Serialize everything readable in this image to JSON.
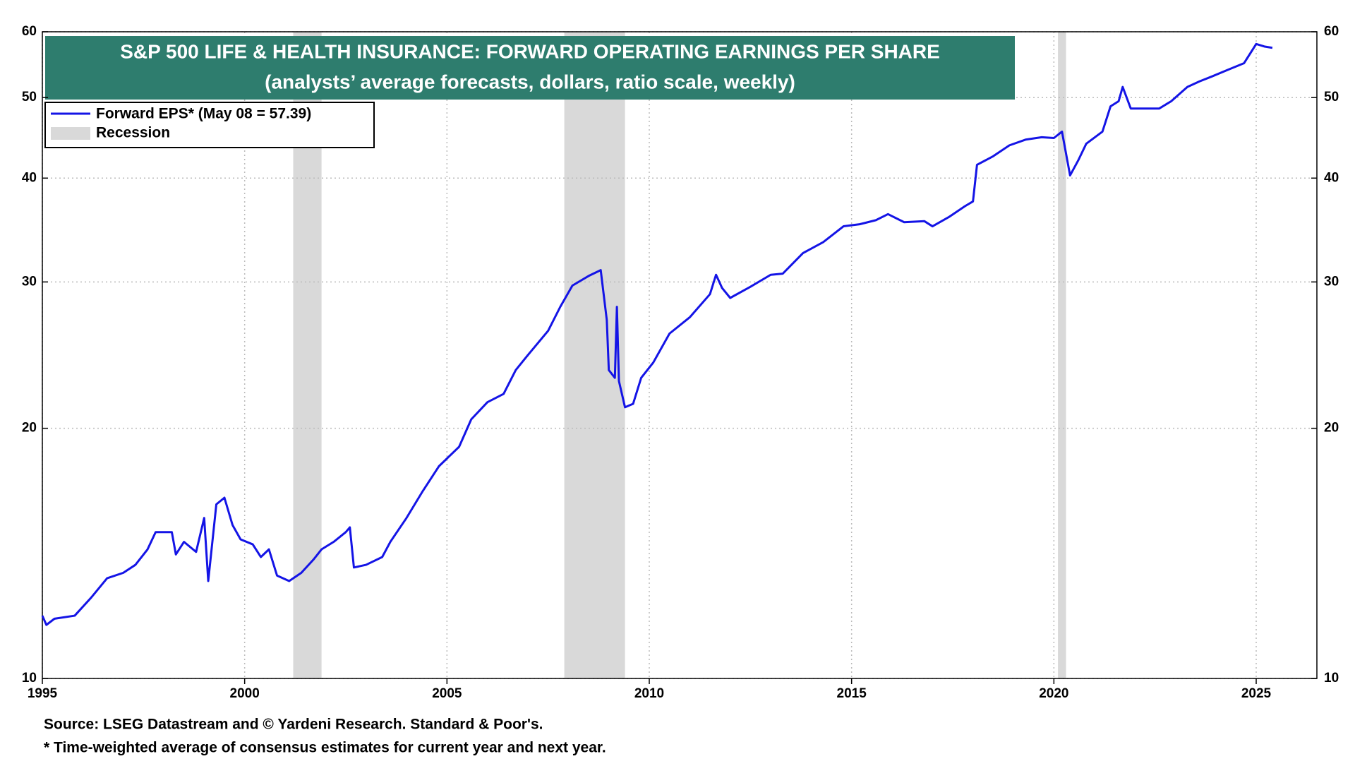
{
  "chart_data": {
    "type": "line",
    "title": "S&P 500 LIFE & HEALTH INSURANCE: FORWARD OPERATING EARNINGS PER SHARE",
    "subtitle": "(analysts’ average forecasts, dollars, ratio scale, weekly)",
    "source": "Source: LSEG Datastream and © Yardeni Research. Standard & Poor's.",
    "footnote": "* Time-weighted average of consensus estimates for current year and next year.",
    "log_scale": true,
    "grid": true,
    "xlim": [
      1995,
      2026.5
    ],
    "xticks": [
      1995,
      2000,
      2005,
      2010,
      2015,
      2020,
      2025
    ],
    "ylim": [
      10,
      60
    ],
    "yticks": [
      10,
      20,
      30,
      40,
      50,
      60
    ],
    "y2lim": [
      10,
      60
    ],
    "y2ticks": [
      10,
      20,
      30,
      40,
      50,
      60
    ],
    "legend_position": "upper left",
    "recession_label": "Recession",
    "recession_color": "#d9d9d9",
    "recessions": [
      [
        2001.2,
        2001.9
      ],
      [
        2007.9,
        2009.4
      ],
      [
        2020.1,
        2020.3
      ]
    ],
    "x": [
      1995.0,
      1995.1,
      1995.3,
      1995.8,
      1996.2,
      1996.6,
      1997.0,
      1997.3,
      1997.6,
      1997.8,
      1998.2,
      1998.3,
      1998.5,
      1998.8,
      1999.0,
      1999.1,
      1999.3,
      1999.5,
      1999.7,
      1999.9,
      2000.2,
      2000.4,
      2000.6,
      2000.8,
      2001.1,
      2001.4,
      2001.7,
      2001.9,
      2002.2,
      2002.5,
      2002.6,
      2002.7,
      2003.0,
      2003.4,
      2003.6,
      2004.0,
      2004.4,
      2004.8,
      2005.3,
      2005.6,
      2006.0,
      2006.4,
      2006.7,
      2007.0,
      2007.5,
      2007.8,
      2008.1,
      2008.5,
      2008.8,
      2008.95,
      2009.0,
      2009.15,
      2009.2,
      2009.25,
      2009.4,
      2009.6,
      2009.8,
      2010.1,
      2010.5,
      2011.0,
      2011.5,
      2011.65,
      2011.8,
      2012.0,
      2012.5,
      2013.0,
      2013.3,
      2013.8,
      2014.3,
      2014.8,
      2015.2,
      2015.6,
      2015.9,
      2016.3,
      2016.8,
      2017.0,
      2017.4,
      2017.8,
      2018.0,
      2018.1,
      2018.5,
      2018.9,
      2019.3,
      2019.7,
      2020.0,
      2020.2,
      2020.4,
      2020.6,
      2020.8,
      2021.2,
      2021.4,
      2021.6,
      2021.7,
      2021.9,
      2022.3,
      2022.6,
      2022.9,
      2023.3,
      2023.6,
      2023.9,
      2024.3,
      2024.7,
      2025.0,
      2025.2,
      2025.4
    ],
    "series": [
      {
        "name": "Forward EPS* (May 08 = 57.39)",
        "color": "#1414e6",
        "values": [
          11.9,
          11.6,
          11.8,
          11.9,
          12.5,
          13.2,
          13.4,
          13.7,
          14.3,
          15.0,
          15.0,
          14.1,
          14.6,
          14.2,
          15.6,
          13.1,
          16.2,
          16.5,
          15.3,
          14.7,
          14.5,
          14.0,
          14.3,
          13.3,
          13.1,
          13.4,
          13.9,
          14.3,
          14.6,
          15.0,
          15.2,
          13.6,
          13.7,
          14.0,
          14.6,
          15.6,
          16.8,
          18.0,
          19.0,
          20.5,
          21.5,
          22.0,
          23.5,
          24.5,
          26.2,
          28.0,
          29.7,
          30.5,
          31.0,
          27.0,
          23.5,
          23.0,
          28.0,
          22.8,
          21.2,
          21.4,
          23.0,
          24.0,
          26.0,
          27.2,
          29.0,
          30.6,
          29.5,
          28.7,
          29.6,
          30.6,
          30.7,
          32.5,
          33.5,
          35.0,
          35.2,
          35.6,
          36.2,
          35.4,
          35.5,
          35.0,
          35.9,
          37.0,
          37.5,
          41.5,
          42.5,
          43.8,
          44.5,
          44.8,
          44.7,
          45.5,
          40.3,
          42.0,
          44.0,
          45.5,
          48.8,
          49.5,
          51.5,
          48.5,
          48.5,
          48.5,
          49.5,
          51.5,
          52.3,
          53.0,
          54.0,
          55.0,
          58.0,
          57.6,
          57.39
        ]
      }
    ]
  }
}
